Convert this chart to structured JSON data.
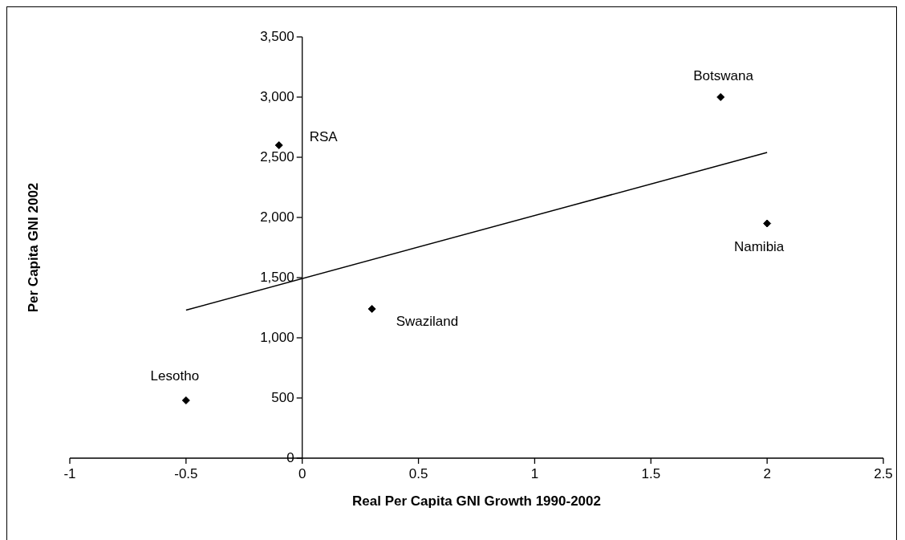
{
  "chart_data": {
    "type": "scatter",
    "xlabel": "Real Per Capita GNI Growth 1990-2002",
    "ylabel": "Per Capita GNI 2002",
    "x": [
      -0.5,
      -0.1,
      0.3,
      1.8,
      2.0
    ],
    "series": [
      {
        "color": "#000000",
        "values": [
          480,
          2600,
          1240,
          3000,
          1950
        ]
      },
      {
        "type": "line",
        "color": "#000000",
        "x": [
          -0.5,
          2.0
        ],
        "values": [
          1230,
          2540
        ],
        "marker": "none",
        "line_style": "solid"
      }
    ],
    "annotations": [
      {
        "text": "Lesotho",
        "x": -0.5,
        "y": 480
      },
      {
        "text": "RSA",
        "x": -0.1,
        "y": 2600
      },
      {
        "text": "Swaziland",
        "x": 0.3,
        "y": 1240
      },
      {
        "text": "Botswana",
        "x": 1.8,
        "y": 3000
      },
      {
        "text": "Namibia",
        "x": 2.0,
        "y": 1950
      }
    ],
    "xlim": [
      -1,
      2.5
    ],
    "xticks": [
      -1,
      -0.5,
      0,
      0.5,
      1,
      1.5,
      2,
      2.5
    ],
    "ylim": [
      0,
      3500
    ],
    "yticks": [
      {
        "value": 0,
        "label": "0"
      },
      {
        "value": 500,
        "label": "500"
      },
      {
        "value": 1000,
        "label": "1,000"
      },
      {
        "value": 1500,
        "label": "1,500"
      },
      {
        "value": 2000,
        "label": "2,000"
      },
      {
        "value": 2500,
        "label": "2,500"
      },
      {
        "value": 3000,
        "label": "3,000"
      },
      {
        "value": 3500,
        "label": "3,500"
      }
    ],
    "grid": false,
    "legend": false,
    "marker": "diamond"
  }
}
